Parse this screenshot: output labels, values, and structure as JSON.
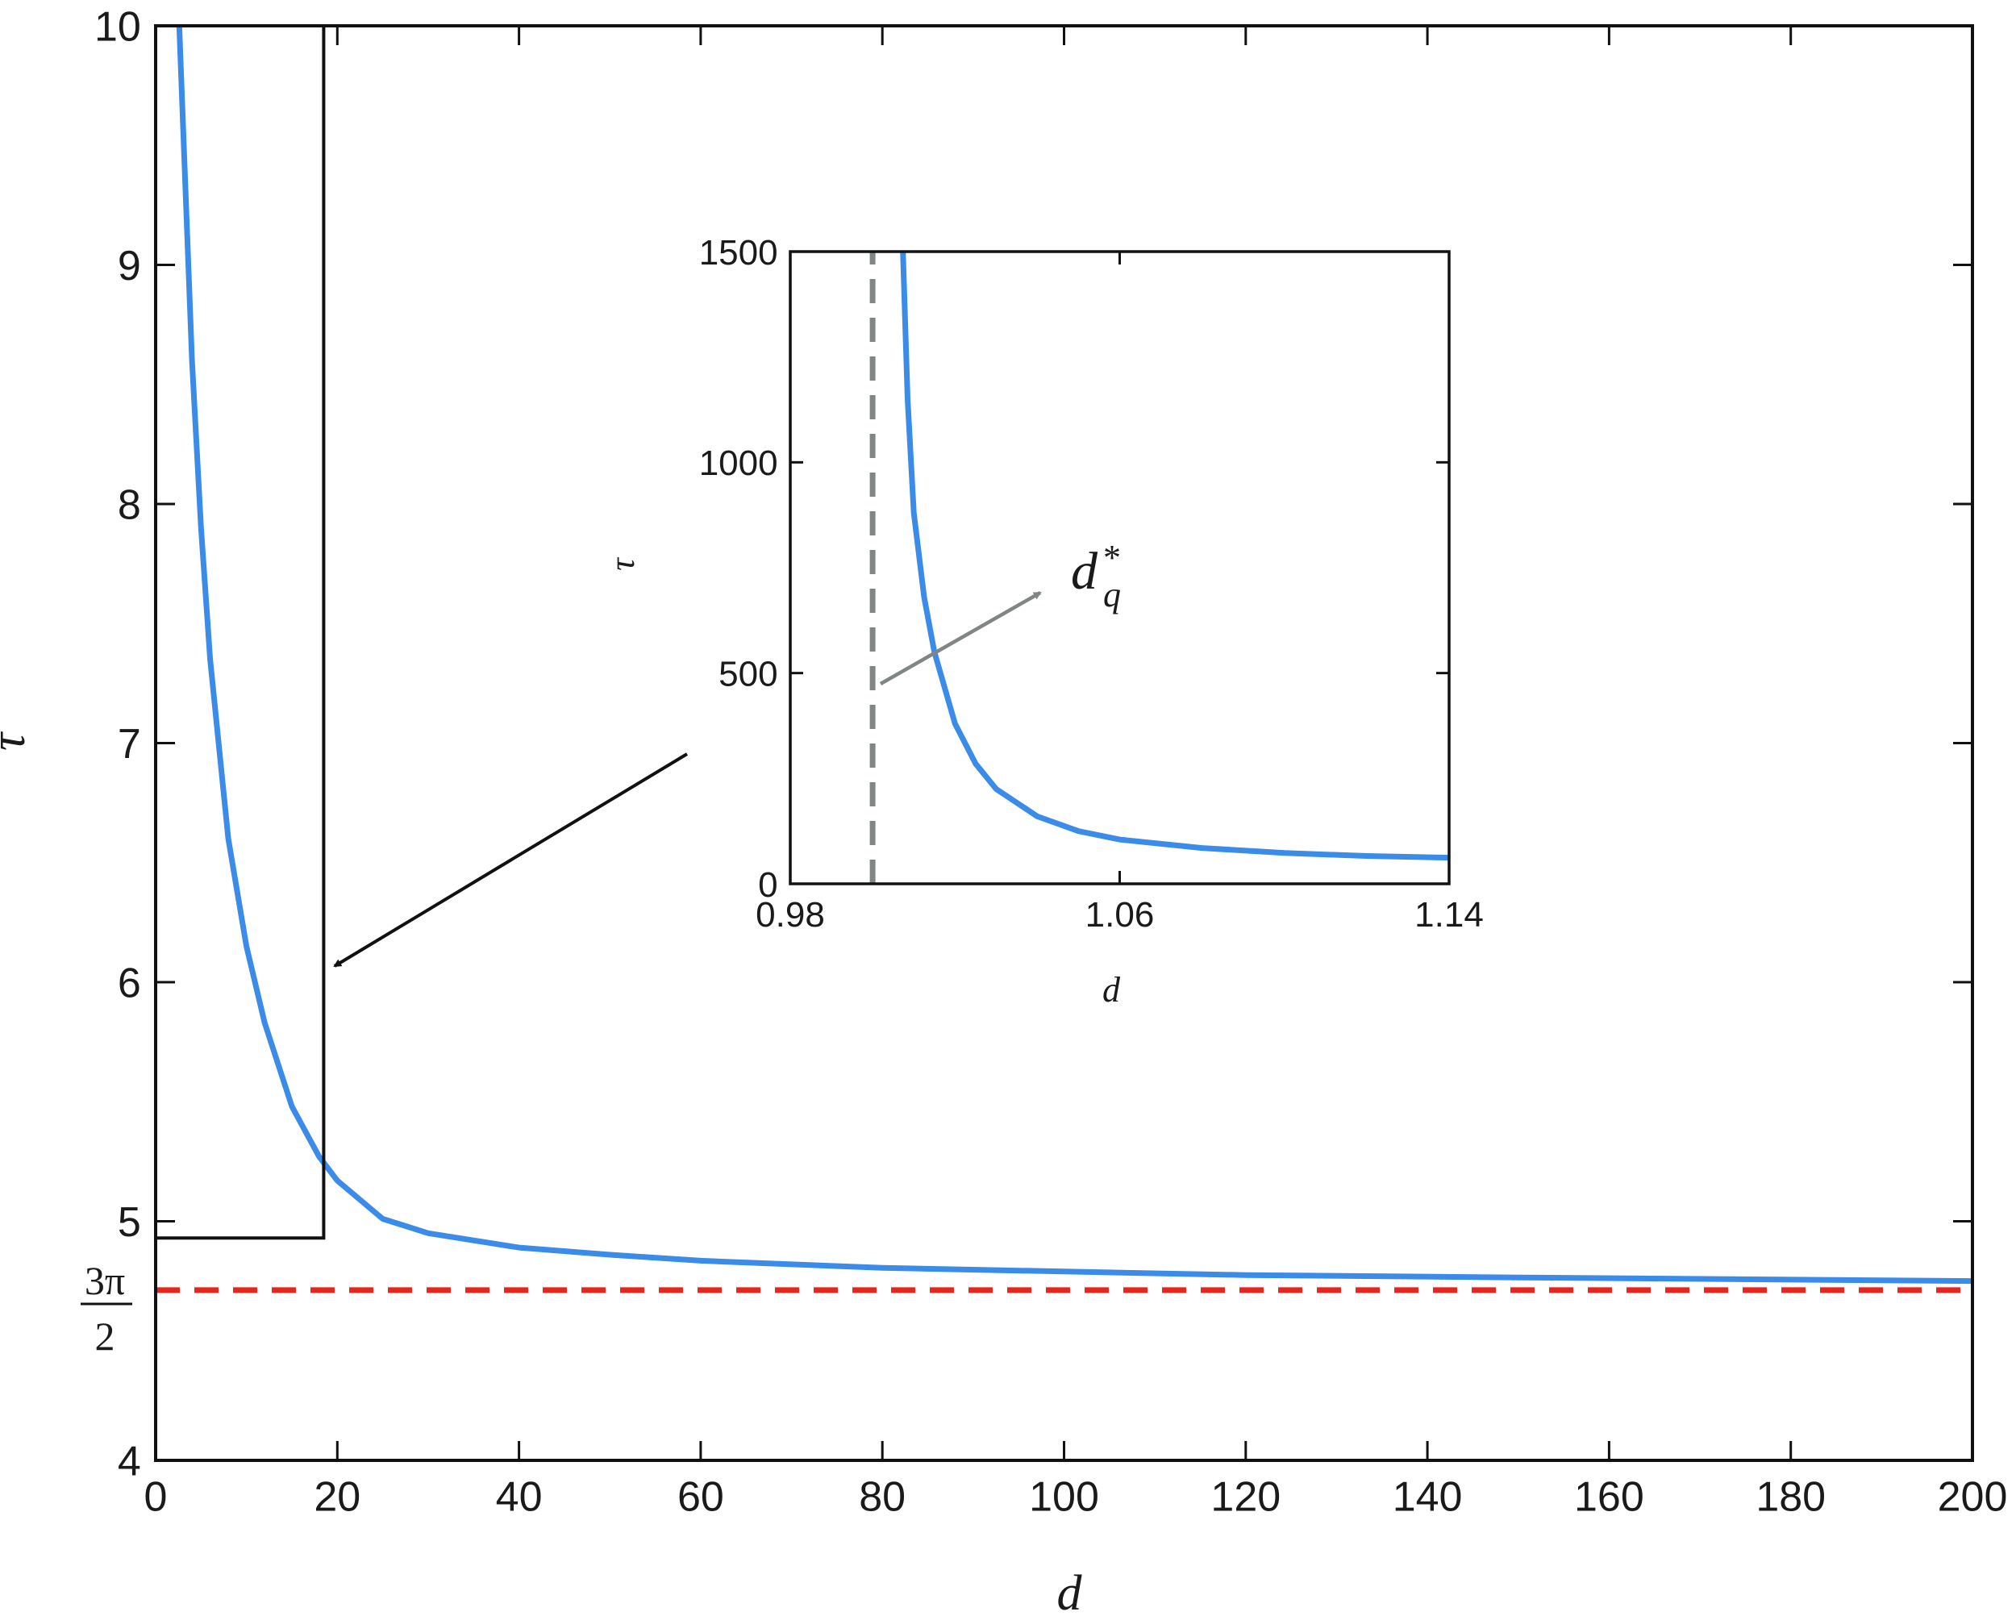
{
  "chart_data": [
    {
      "id": "main",
      "type": "line",
      "xlabel": "d",
      "ylabel": "τ",
      "xlim": [
        0,
        200
      ],
      "ylim": [
        4,
        10
      ],
      "xticks": [
        0,
        20,
        40,
        60,
        80,
        100,
        120,
        140,
        160,
        180,
        200
      ],
      "yticks": [
        4,
        5,
        6,
        7,
        8,
        9,
        10
      ],
      "special_ytick": {
        "value": 4.712,
        "numerator": "3π",
        "denominator": "2"
      },
      "grid": false,
      "series": [
        {
          "color": "#3b8be8",
          "style": "solid",
          "x": [
            2.6,
            3,
            4,
            5,
            6,
            8,
            10,
            12,
            15,
            18,
            20,
            25,
            30,
            40,
            50,
            60,
            80,
            100,
            120,
            150,
            200
          ],
          "y": [
            10.0,
            9.6,
            8.6,
            7.9,
            7.35,
            6.6,
            6.15,
            5.83,
            5.48,
            5.27,
            5.17,
            5.01,
            4.95,
            4.89,
            4.86,
            4.835,
            4.805,
            4.79,
            4.775,
            4.765,
            4.75
          ]
        },
        {
          "color": "#e8251c",
          "style": "dashed",
          "x": [
            0,
            200
          ],
          "y": [
            4.712,
            4.712
          ]
        }
      ],
      "zoom_box": {
        "x": [
          0,
          18.5
        ],
        "y": [
          4.93,
          10
        ]
      }
    },
    {
      "id": "inset",
      "type": "line",
      "xlabel": "d",
      "ylabel": "τ",
      "xlim": [
        0.98,
        1.14
      ],
      "ylim": [
        0,
        1500
      ],
      "xticks": [
        0.98,
        1.06,
        1.14
      ],
      "yticks": [
        0,
        500,
        1000,
        1500
      ],
      "grid": false,
      "series": [
        {
          "color": "#3b8be8",
          "style": "solid",
          "x": [
            1.00735,
            1.0085,
            1.01,
            1.0125,
            1.015,
            1.02,
            1.025,
            1.03,
            1.04,
            1.05,
            1.06,
            1.08,
            1.1,
            1.12,
            1.14
          ],
          "y": [
            1500,
            1150,
            880,
            680,
            550,
            380,
            285,
            225,
            160,
            125,
            105,
            85,
            73,
            66,
            62
          ]
        },
        {
          "color": "#808686",
          "style": "dashed",
          "x": [
            1.0,
            1.0
          ],
          "y": [
            0,
            1500
          ]
        }
      ],
      "annotation": {
        "base": "d",
        "superscript": "*",
        "subscript": "q"
      }
    }
  ]
}
